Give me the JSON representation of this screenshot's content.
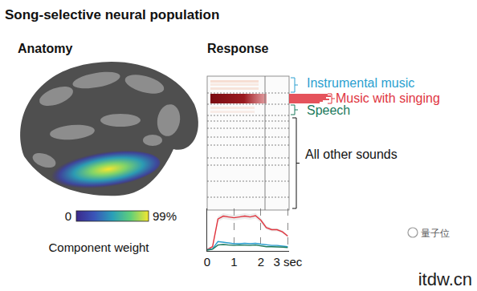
{
  "header": {
    "title": "Song-selective neural population"
  },
  "anatomy": {
    "title": "Anatomy",
    "colorbar": {
      "range": [
        0,
        99
      ],
      "ticks": [
        0,
        {
          "value": 99,
          "label": "99%"
        }
      ],
      "title": "Component weight"
    }
  },
  "response": {
    "title": "Response",
    "groups": [
      {
        "label": "Instrumental music",
        "color": "#2a9fd0"
      },
      {
        "label": "Music with singing",
        "color": "#e0353f"
      },
      {
        "label": "Speech",
        "color": "#1b7a5c"
      },
      {
        "label": "All other sounds",
        "color": "#111111"
      }
    ]
  },
  "chart_data": {
    "type": "line",
    "tick_labels": "x",
    "grid": true,
    "x": [
      0,
      0.2,
      0.4,
      0.6,
      0.8,
      1.0,
      1.2,
      1.4,
      1.6,
      1.8,
      2.0,
      2.2,
      2.4,
      2.6,
      2.8,
      3.0
    ],
    "xlim": [
      0,
      3.05
    ],
    "xticks": [
      0,
      1,
      2,
      {
        "value": 3,
        "label": "3 sec"
      }
    ],
    "ylim": [
      0,
      1
    ],
    "series": [
      {
        "name": "Music with singing",
        "color": "#e0353f",
        "values": [
          0.03,
          0.1,
          0.75,
          0.82,
          0.8,
          0.78,
          0.8,
          0.82,
          0.8,
          0.83,
          0.72,
          0.55,
          0.5,
          0.5,
          0.45,
          0.35
        ]
      },
      {
        "name": "Instrumental music",
        "color": "#2a9fd0",
        "values": [
          0.03,
          0.05,
          0.22,
          0.2,
          0.18,
          0.17,
          0.17,
          0.18,
          0.17,
          0.18,
          0.16,
          0.14,
          0.13,
          0.13,
          0.12,
          0.1
        ]
      },
      {
        "name": "Speech",
        "color": "#1b7a5c",
        "values": [
          0.02,
          0.04,
          0.14,
          0.15,
          0.14,
          0.13,
          0.14,
          0.13,
          0.13,
          0.14,
          0.12,
          0.1,
          0.1,
          0.1,
          0.09,
          0.08
        ]
      }
    ]
  },
  "watermark": {
    "source": "量子位",
    "site": "itdw.cn"
  }
}
